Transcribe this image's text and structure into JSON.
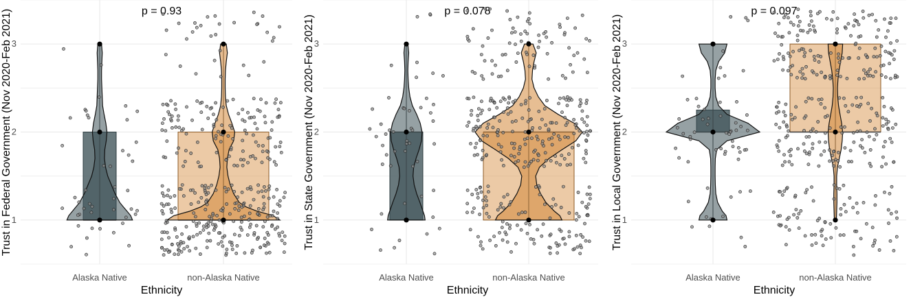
{
  "chart_data": [
    {
      "type": "violin-box-jitter",
      "pvalue": "p = 0.93",
      "xlabel": "Ethnicity",
      "ylabel": "Trust in Federal Government (Nov 2020-Feb 2021)",
      "categories": [
        "Alaska Native",
        "non-Alaska Native"
      ],
      "yticks": [
        1,
        2,
        3
      ],
      "ylim": [
        0.5,
        3.5
      ],
      "grid": true,
      "groups": [
        {
          "name": "Alaska Native",
          "color": "#3f5359",
          "box": {
            "q1": 1,
            "median": 1,
            "q3": 2
          },
          "points": [
            1,
            2,
            3
          ],
          "violin": [
            [
              1.0,
              0.9
            ],
            [
              1.05,
              0.85
            ],
            [
              1.1,
              0.75
            ],
            [
              1.15,
              0.65
            ],
            [
              1.2,
              0.55
            ],
            [
              1.3,
              0.42
            ],
            [
              1.4,
              0.32
            ],
            [
              1.5,
              0.22
            ],
            [
              1.6,
              0.16
            ],
            [
              1.7,
              0.13
            ],
            [
              1.8,
              0.14
            ],
            [
              1.9,
              0.18
            ],
            [
              2.0,
              0.2
            ],
            [
              2.1,
              0.17
            ],
            [
              2.2,
              0.12
            ],
            [
              2.3,
              0.08
            ],
            [
              2.4,
              0.07
            ],
            [
              2.5,
              0.06
            ],
            [
              2.6,
              0.05
            ],
            [
              2.7,
              0.05
            ],
            [
              2.8,
              0.06
            ],
            [
              2.9,
              0.07
            ],
            [
              3.0,
              0.05
            ]
          ],
          "jitter_n": 45
        },
        {
          "name": "non-Alaska Native",
          "color": "#d4893a",
          "box": {
            "q1": 1,
            "median": 1,
            "q3": 2
          },
          "points": [
            1,
            2,
            3
          ],
          "violin": [
            [
              1.0,
              1.0
            ],
            [
              1.05,
              0.88
            ],
            [
              1.1,
              0.6
            ],
            [
              1.15,
              0.4
            ],
            [
              1.2,
              0.28
            ],
            [
              1.3,
              0.18
            ],
            [
              1.4,
              0.12
            ],
            [
              1.5,
              0.08
            ],
            [
              1.6,
              0.06
            ],
            [
              1.7,
              0.07
            ],
            [
              1.8,
              0.1
            ],
            [
              1.9,
              0.18
            ],
            [
              2.0,
              0.2
            ],
            [
              2.1,
              0.15
            ],
            [
              2.2,
              0.09
            ],
            [
              2.3,
              0.05
            ],
            [
              2.4,
              0.035
            ],
            [
              2.5,
              0.03
            ],
            [
              2.6,
              0.03
            ],
            [
              2.7,
              0.035
            ],
            [
              2.8,
              0.05
            ],
            [
              2.9,
              0.07
            ],
            [
              3.0,
              0.05
            ]
          ],
          "jitter_n": 390
        }
      ]
    },
    {
      "type": "violin-box-jitter",
      "pvalue": "p = 0.078",
      "xlabel": "Ethnicity",
      "ylabel": "Trust in State Government (Nov 2020-Feb 2021)",
      "categories": [
        "Alaska Native",
        "non-Alaska Native"
      ],
      "yticks": [
        1,
        2,
        3
      ],
      "ylim": [
        0.5,
        3.5
      ],
      "grid": true,
      "groups": [
        {
          "name": "Alaska Native",
          "color": "#3f5359",
          "box": {
            "q1": 1,
            "median": 2,
            "q3": 2
          },
          "points": [
            1,
            2,
            3
          ],
          "violin": [
            [
              1.0,
              0.62
            ],
            [
              1.05,
              0.6
            ],
            [
              1.1,
              0.55
            ],
            [
              1.2,
              0.45
            ],
            [
              1.3,
              0.34
            ],
            [
              1.4,
              0.26
            ],
            [
              1.5,
              0.22
            ],
            [
              1.6,
              0.24
            ],
            [
              1.7,
              0.32
            ],
            [
              1.8,
              0.42
            ],
            [
              1.9,
              0.5
            ],
            [
              2.0,
              0.52
            ],
            [
              2.1,
              0.46
            ],
            [
              2.2,
              0.34
            ],
            [
              2.3,
              0.2
            ],
            [
              2.4,
              0.12
            ],
            [
              2.5,
              0.08
            ],
            [
              2.6,
              0.06
            ],
            [
              2.7,
              0.05
            ],
            [
              2.8,
              0.06
            ],
            [
              2.9,
              0.08
            ],
            [
              3.0,
              0.05
            ]
          ],
          "jitter_n": 50
        },
        {
          "name": "non-Alaska Native",
          "color": "#d4893a",
          "box": {
            "q1": 1,
            "median": 2,
            "q3": 2
          },
          "points": [
            1,
            2,
            3
          ],
          "violin": [
            [
              1.0,
              0.62
            ],
            [
              1.05,
              0.58
            ],
            [
              1.1,
              0.48
            ],
            [
              1.2,
              0.32
            ],
            [
              1.3,
              0.22
            ],
            [
              1.4,
              0.15
            ],
            [
              1.5,
              0.13
            ],
            [
              1.6,
              0.2
            ],
            [
              1.7,
              0.38
            ],
            [
              1.8,
              0.62
            ],
            [
              1.9,
              0.88
            ],
            [
              2.0,
              1.0
            ],
            [
              2.1,
              0.85
            ],
            [
              2.2,
              0.55
            ],
            [
              2.3,
              0.3
            ],
            [
              2.4,
              0.18
            ],
            [
              2.5,
              0.1
            ],
            [
              2.6,
              0.06
            ],
            [
              2.7,
              0.07
            ],
            [
              2.8,
              0.1
            ],
            [
              2.9,
              0.14
            ],
            [
              3.0,
              0.08
            ]
          ],
          "jitter_n": 380
        }
      ]
    },
    {
      "type": "violin-box-jitter",
      "pvalue": "p = 0.097",
      "xlabel": "Ethnicity",
      "ylabel": "Trust in Local Government (Nov 2020-Feb 2021)",
      "categories": [
        "Alaska Native",
        "non-Alaska Native"
      ],
      "yticks": [
        1,
        2,
        3
      ],
      "ylim": [
        0.5,
        3.5
      ],
      "grid": true,
      "groups": [
        {
          "name": "Alaska Native",
          "color": "#3f5359",
          "box": {
            "q1": 2,
            "median": 2,
            "q3": 2.25
          },
          "points": [
            1,
            2,
            3
          ],
          "violin": [
            [
              1.0,
              0.3
            ],
            [
              1.05,
              0.28
            ],
            [
              1.1,
              0.2
            ],
            [
              1.2,
              0.1
            ],
            [
              1.3,
              0.06
            ],
            [
              1.4,
              0.05
            ],
            [
              1.5,
              0.045
            ],
            [
              1.6,
              0.045
            ],
            [
              1.7,
              0.05
            ],
            [
              1.8,
              0.08
            ],
            [
              1.9,
              0.3
            ],
            [
              2.0,
              1.0
            ],
            [
              2.1,
              0.75
            ],
            [
              2.2,
              0.3
            ],
            [
              2.3,
              0.12
            ],
            [
              2.4,
              0.06
            ],
            [
              2.5,
              0.045
            ],
            [
              2.6,
              0.045
            ],
            [
              2.7,
              0.06
            ],
            [
              2.8,
              0.12
            ],
            [
              2.9,
              0.25
            ],
            [
              3.0,
              0.3
            ]
          ],
          "jitter_n": 60
        },
        {
          "name": "non-Alaska Native",
          "color": "#d4893a",
          "box": {
            "q1": 2,
            "median": 2,
            "q3": 3
          },
          "points": [
            1,
            2,
            3
          ],
          "violin": [
            [
              1.0,
              0.04
            ],
            [
              1.05,
              0.045
            ],
            [
              1.1,
              0.05
            ],
            [
              1.2,
              0.06
            ],
            [
              1.3,
              0.06
            ],
            [
              1.4,
              0.05
            ],
            [
              1.5,
              0.05
            ],
            [
              1.6,
              0.08
            ],
            [
              1.7,
              0.15
            ],
            [
              1.8,
              0.22
            ],
            [
              1.9,
              0.26
            ],
            [
              2.0,
              0.28
            ],
            [
              2.1,
              0.24
            ],
            [
              2.2,
              0.18
            ],
            [
              2.3,
              0.12
            ],
            [
              2.4,
              0.09
            ],
            [
              2.5,
              0.08
            ],
            [
              2.6,
              0.1
            ],
            [
              2.7,
              0.14
            ],
            [
              2.8,
              0.2
            ],
            [
              2.9,
              0.26
            ],
            [
              3.0,
              0.28
            ]
          ],
          "jitter_n": 380
        }
      ]
    }
  ]
}
